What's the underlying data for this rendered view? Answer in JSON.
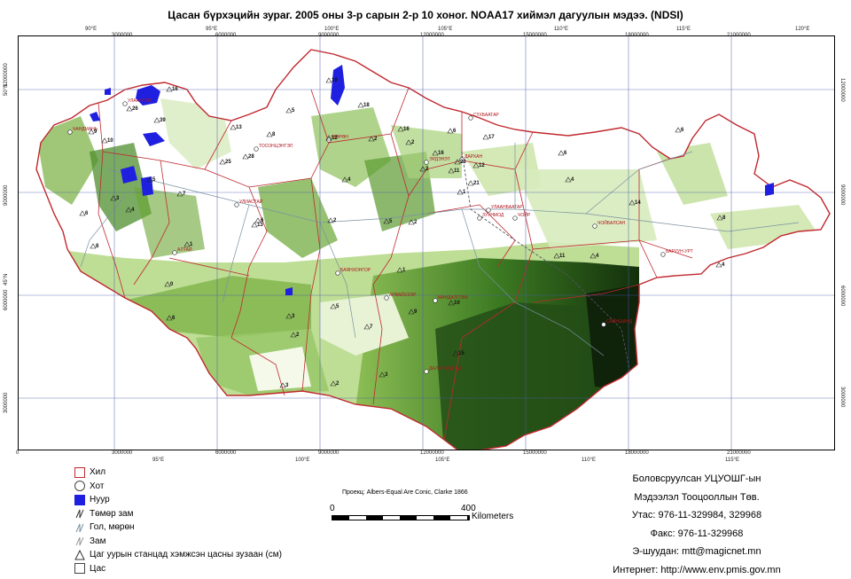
{
  "title": "Цасан бүрхэцийн зураг. 2005 оны 3-р сарын 2-р 10 хоног. NOAA17 хиймэл дагуулын мэдээ. (NDSI)",
  "colors": {
    "snow_light": "#c8e2a0",
    "snow_mid": "#6aa634",
    "snow_dark": "#1f4a12",
    "lake": "#1f1fe0",
    "border": "#c0282e",
    "road": "#7a90a0"
  },
  "map": {
    "graticule_top": [
      "90°E",
      "95°E",
      "100°E",
      "105°E",
      "110°E",
      "115°E",
      "120°E"
    ],
    "graticule_bottom": [
      "95°E",
      "100°E",
      "105°E",
      "110°E",
      "115°E"
    ],
    "grid_top": [
      "3000000",
      "6000000",
      "9000000",
      "12000000",
      "15000000",
      "18000000",
      "21000000"
    ],
    "grid_bottom": [
      "0",
      "3000000",
      "6000000",
      "9000000",
      "12000000",
      "15000000",
      "18000000",
      "21000000"
    ],
    "grid_left": [
      "12000000",
      "9000000",
      "6000000",
      "3000000"
    ],
    "lat_left": [
      "50°N",
      "45°N"
    ],
    "cities": [
      "ЧАНДМАНЬ",
      "УЛААНГОМ",
      "ТОСОНЦЭНГЭЛ",
      "УЛИАСТАЙ",
      "АЛТАЙ",
      "БАЯНХОНГОР",
      "АРВАЙХЭЭР",
      "МӨРӨН",
      "ЭРДЭНЭТ",
      "ДАРХАН",
      "СҮХБААТАР",
      "УЛААНБААТАР",
      "ЗУУНМОД",
      "ЧОЙР",
      "ЧОЙБАЛСАН",
      "БАРУУН-УРТ",
      "САЙНШАНД",
      "МАНДАЛГОВЬ",
      "ДАЛАНЗАДГАД"
    ],
    "stations": [
      "16",
      "26",
      "39",
      "19",
      "18",
      "5",
      "13",
      "9",
      "10",
      "8",
      "12",
      "2",
      "16",
      "6",
      "17",
      "23",
      "11",
      "2",
      "12",
      "4",
      "21",
      "4",
      "6",
      "25",
      "28",
      "5",
      "7",
      "1",
      "6",
      "14",
      "3",
      "2",
      "4",
      "6",
      "8",
      "13",
      "5",
      "2",
      "1",
      "6",
      "8",
      "4",
      "3",
      "2",
      "5",
      "7",
      "9",
      "10",
      "15",
      "3",
      "2",
      "1",
      "0",
      "4",
      "6",
      "11",
      "16",
      "2",
      "3"
    ]
  },
  "legend": [
    {
      "icon": "province-icon",
      "label": "Хил"
    },
    {
      "icon": "city-icon",
      "label": "Хот"
    },
    {
      "icon": "lake-icon",
      "label": "Нуур"
    },
    {
      "icon": "railway-icon",
      "label": "Төмөр зам"
    },
    {
      "icon": "river-icon",
      "label": "Гол, мөрөн"
    },
    {
      "icon": "road-icon",
      "label": "Зам"
    },
    {
      "icon": "station-icon",
      "label": "Цаг уурын станцад хэмжсэн цасны зузаан (см)"
    },
    {
      "icon": "snow-icon",
      "label": "Цас"
    }
  ],
  "projection": "Проекц: Albers-Equal Are Conic, Clarke 1866",
  "scale": {
    "start": "0",
    "end": "400",
    "unit": "Kilometers"
  },
  "credits": [
    "Боловсруулсан УЦУОШГ-ын",
    "Мэдээлэл Тооцооллын Төв.",
    "Утас: 976-11-329984, 329968",
    "Факс: 976-11-329968",
    "Э-шуудан: mtt@magicnet.mn",
    "Интернет: http://www.env.pmis.gov.mn"
  ]
}
